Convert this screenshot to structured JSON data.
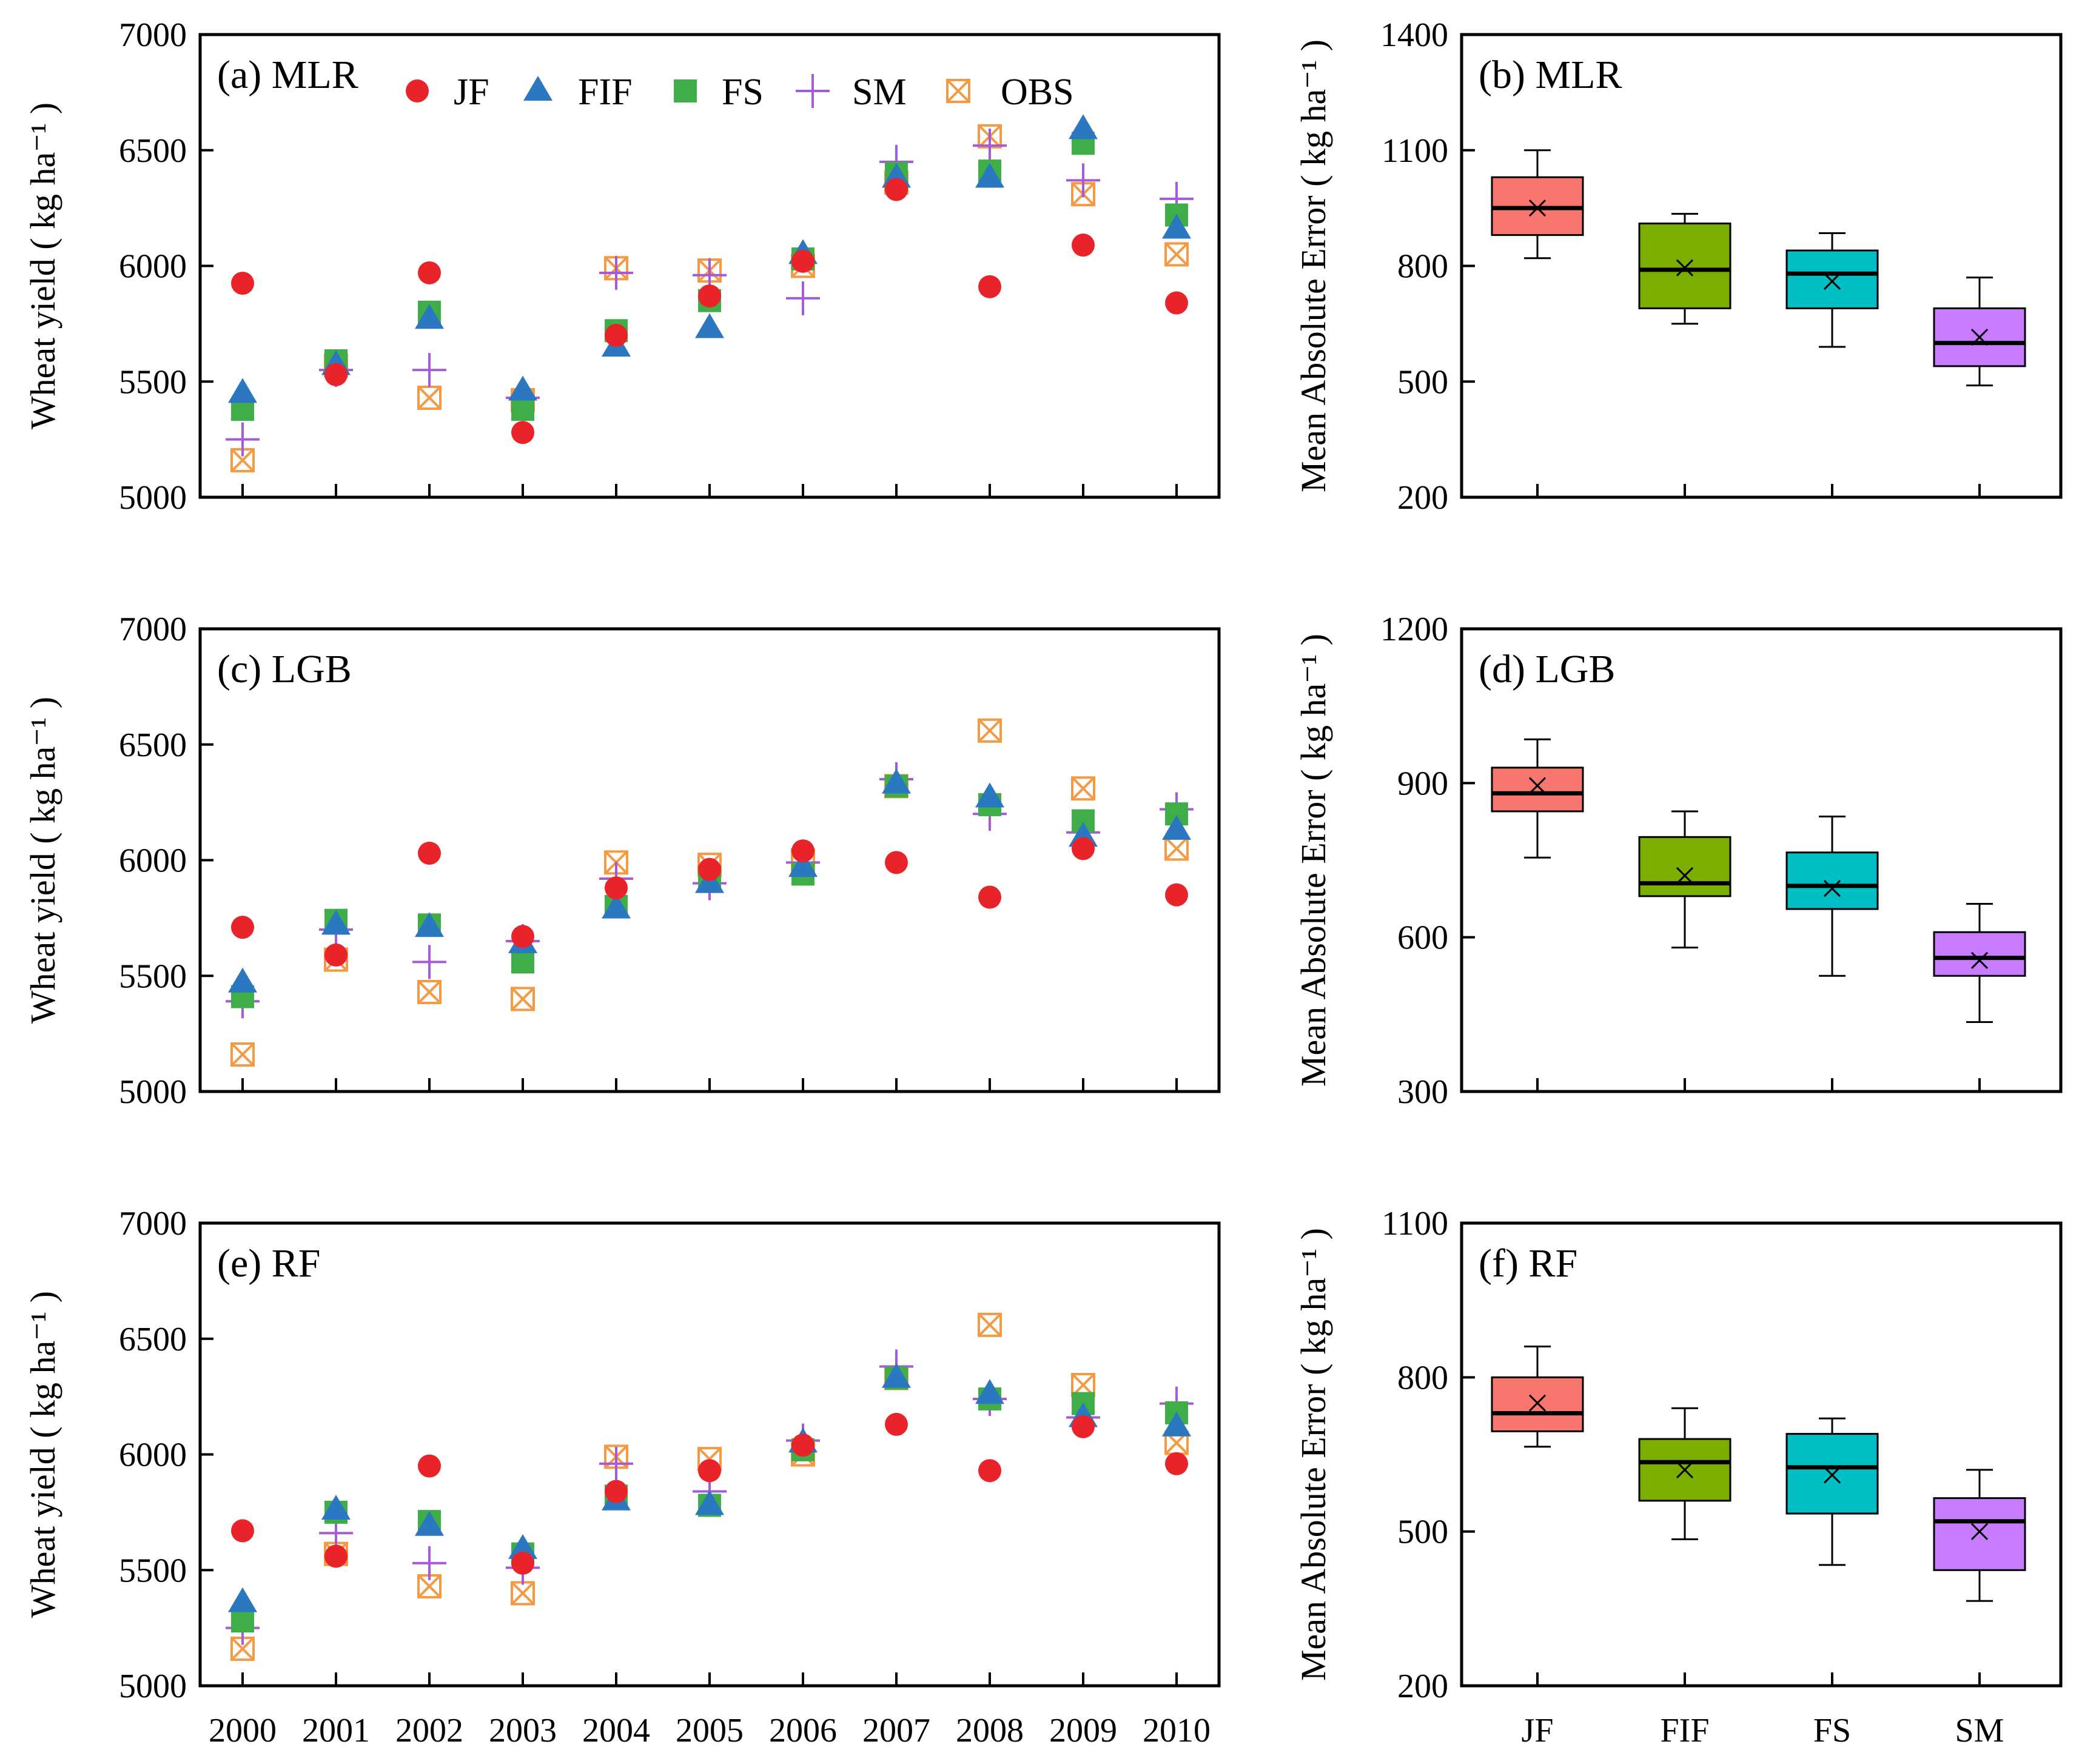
{
  "chart_data": [
    {
      "type": "scatter",
      "panel": "a",
      "title": "(a) MLR",
      "xlabel": "",
      "ylabel": "Wheat yield ( kg ha⁻¹ )",
      "ylim": [
        5000,
        7000
      ],
      "yticks": [
        5000,
        5500,
        6000,
        6500,
        7000
      ],
      "x": [
        "2000",
        "2001",
        "2002",
        "2003",
        "2004",
        "2005",
        "2006",
        "2007",
        "2008",
        "2009",
        "2010"
      ],
      "series": [
        {
          "name": "JF",
          "values": [
            5925,
            5530,
            5970,
            5280,
            5700,
            5870,
            6020,
            6330,
            5910,
            6090,
            5840
          ]
        },
        {
          "name": "FIF",
          "values": [
            5450,
            5570,
            5770,
            5460,
            5650,
            5730,
            6050,
            6380,
            6380,
            6590,
            6160
          ]
        },
        {
          "name": "FS",
          "values": [
            5380,
            5590,
            5800,
            5380,
            5720,
            5850,
            6030,
            6400,
            6410,
            6530,
            6220
          ]
        },
        {
          "name": "SM",
          "values": [
            5250,
            5550,
            5550,
            5430,
            5970,
            5960,
            5860,
            6450,
            6520,
            6370,
            6290
          ]
        },
        {
          "name": "OBS",
          "values": [
            5160,
            5570,
            5430,
            5420,
            5990,
            5980,
            6000,
            6360,
            6560,
            6310,
            6050
          ]
        }
      ]
    },
    {
      "type": "box",
      "panel": "b",
      "title": "(b) MLR",
      "ylabel": "Mean Absolute Error ( kg ha⁻¹ )",
      "ylim": [
        200,
        1400
      ],
      "yticks": [
        200,
        500,
        800,
        1100,
        1400
      ],
      "categories": [
        "JF",
        "FIF",
        "FS",
        "SM"
      ],
      "colors": [
        "#f8766d",
        "#7cae00",
        "#00bfc4",
        "#c77cff"
      ],
      "boxes": [
        {
          "min": 820,
          "q1": 880,
          "median": 950,
          "q3": 1030,
          "max": 1100,
          "mean": 950
        },
        {
          "min": 650,
          "q1": 690,
          "median": 790,
          "q3": 910,
          "max": 935,
          "mean": 795
        },
        {
          "min": 590,
          "q1": 690,
          "median": 780,
          "q3": 840,
          "max": 885,
          "mean": 760
        },
        {
          "min": 490,
          "q1": 540,
          "median": 600,
          "q3": 690,
          "max": 770,
          "mean": 615
        }
      ]
    },
    {
      "type": "scatter",
      "panel": "c",
      "title": "(c) LGB",
      "xlabel": "",
      "ylabel": "Wheat yield ( kg ha⁻¹ )",
      "ylim": [
        5000,
        7000
      ],
      "yticks": [
        5000,
        5500,
        6000,
        6500,
        7000
      ],
      "x": [
        "2000",
        "2001",
        "2002",
        "2003",
        "2004",
        "2005",
        "2006",
        "2007",
        "2008",
        "2009",
        "2010"
      ],
      "series": [
        {
          "name": "JF",
          "values": [
            5710,
            5590,
            6030,
            5670,
            5880,
            5960,
            6040,
            5990,
            5840,
            6050,
            5850
          ]
        },
        {
          "name": "FIF",
          "values": [
            5470,
            5720,
            5710,
            5640,
            5790,
            5900,
            5970,
            6330,
            6270,
            6100,
            6130
          ]
        },
        {
          "name": "FS",
          "values": [
            5410,
            5740,
            5720,
            5560,
            5800,
            5930,
            5940,
            6320,
            6240,
            6170,
            6200
          ]
        },
        {
          "name": "SM",
          "values": [
            5390,
            5700,
            5560,
            5650,
            5920,
            5900,
            5990,
            6350,
            6200,
            6120,
            6220
          ]
        },
        {
          "name": "OBS",
          "values": [
            5160,
            5570,
            5430,
            5400,
            5990,
            5980,
            6000,
            6320,
            6560,
            6310,
            6050
          ]
        }
      ]
    },
    {
      "type": "box",
      "panel": "d",
      "title": "(d) LGB",
      "ylabel": "Mean Absolute Error ( kg ha⁻¹ )",
      "ylim": [
        300,
        1200
      ],
      "yticks": [
        300,
        600,
        900,
        1200
      ],
      "categories": [
        "JF",
        "FIF",
        "FS",
        "SM"
      ],
      "colors": [
        "#f8766d",
        "#7cae00",
        "#00bfc4",
        "#c77cff"
      ],
      "boxes": [
        {
          "min": 755,
          "q1": 845,
          "median": 880,
          "q3": 930,
          "max": 985,
          "mean": 895
        },
        {
          "min": 580,
          "q1": 680,
          "median": 705,
          "q3": 795,
          "max": 845,
          "mean": 720
        },
        {
          "min": 525,
          "q1": 655,
          "median": 700,
          "q3": 765,
          "max": 835,
          "mean": 695
        },
        {
          "min": 435,
          "q1": 525,
          "median": 560,
          "q3": 610,
          "max": 665,
          "mean": 555
        }
      ]
    },
    {
      "type": "scatter",
      "panel": "e",
      "title": "(e) RF",
      "xlabel": "",
      "ylabel": "Wheat yield ( kg ha⁻¹ )",
      "ylim": [
        5000,
        7000
      ],
      "yticks": [
        5000,
        5500,
        6000,
        6500,
        7000
      ],
      "x": [
        "2000",
        "2001",
        "2002",
        "2003",
        "2004",
        "2005",
        "2006",
        "2007",
        "2008",
        "2009",
        "2010"
      ],
      "series": [
        {
          "name": "JF",
          "values": [
            5670,
            5560,
            5950,
            5530,
            5840,
            5930,
            6040,
            6130,
            5930,
            6120,
            5960
          ]
        },
        {
          "name": "FIF",
          "values": [
            5360,
            5760,
            5690,
            5590,
            5800,
            5780,
            6050,
            6330,
            6260,
            6160,
            6120
          ]
        },
        {
          "name": "FS",
          "values": [
            5280,
            5750,
            5710,
            5570,
            5820,
            5780,
            6020,
            6330,
            6240,
            6220,
            6180
          ]
        },
        {
          "name": "SM",
          "values": [
            5250,
            5660,
            5530,
            5510,
            5960,
            5840,
            6060,
            6380,
            6240,
            6160,
            6220
          ]
        },
        {
          "name": "OBS",
          "values": [
            5160,
            5570,
            5430,
            5400,
            5990,
            5980,
            6000,
            6330,
            6560,
            6300,
            6050
          ]
        }
      ]
    },
    {
      "type": "box",
      "panel": "f",
      "title": "(f) RF",
      "ylabel": "Mean Absolute Error ( kg ha⁻¹ )",
      "ylim": [
        200,
        1100
      ],
      "yticks": [
        200,
        500,
        800,
        1100
      ],
      "categories": [
        "JF",
        "FIF",
        "FS",
        "SM"
      ],
      "colors": [
        "#f8766d",
        "#7cae00",
        "#00bfc4",
        "#c77cff"
      ],
      "boxes": [
        {
          "min": 665,
          "q1": 695,
          "median": 730,
          "q3": 800,
          "max": 860,
          "mean": 750
        },
        {
          "min": 485,
          "q1": 560,
          "median": 635,
          "q3": 680,
          "max": 740,
          "mean": 620
        },
        {
          "min": 435,
          "q1": 535,
          "median": 625,
          "q3": 690,
          "max": 720,
          "mean": 610
        },
        {
          "min": 365,
          "q1": 425,
          "median": 520,
          "q3": 565,
          "max": 620,
          "mean": 500
        }
      ]
    }
  ],
  "legend": {
    "entries": [
      {
        "name": "JF",
        "marker": "circle",
        "color": "#e8242a"
      },
      {
        "name": "FIF",
        "marker": "triangle",
        "color": "#2b78c1"
      },
      {
        "name": "FS",
        "marker": "square",
        "color": "#3fae49"
      },
      {
        "name": "SM",
        "marker": "plus",
        "color": "#a55bd6"
      },
      {
        "name": "OBS",
        "marker": "boxed-x",
        "color": "#f59a44"
      }
    ]
  }
}
